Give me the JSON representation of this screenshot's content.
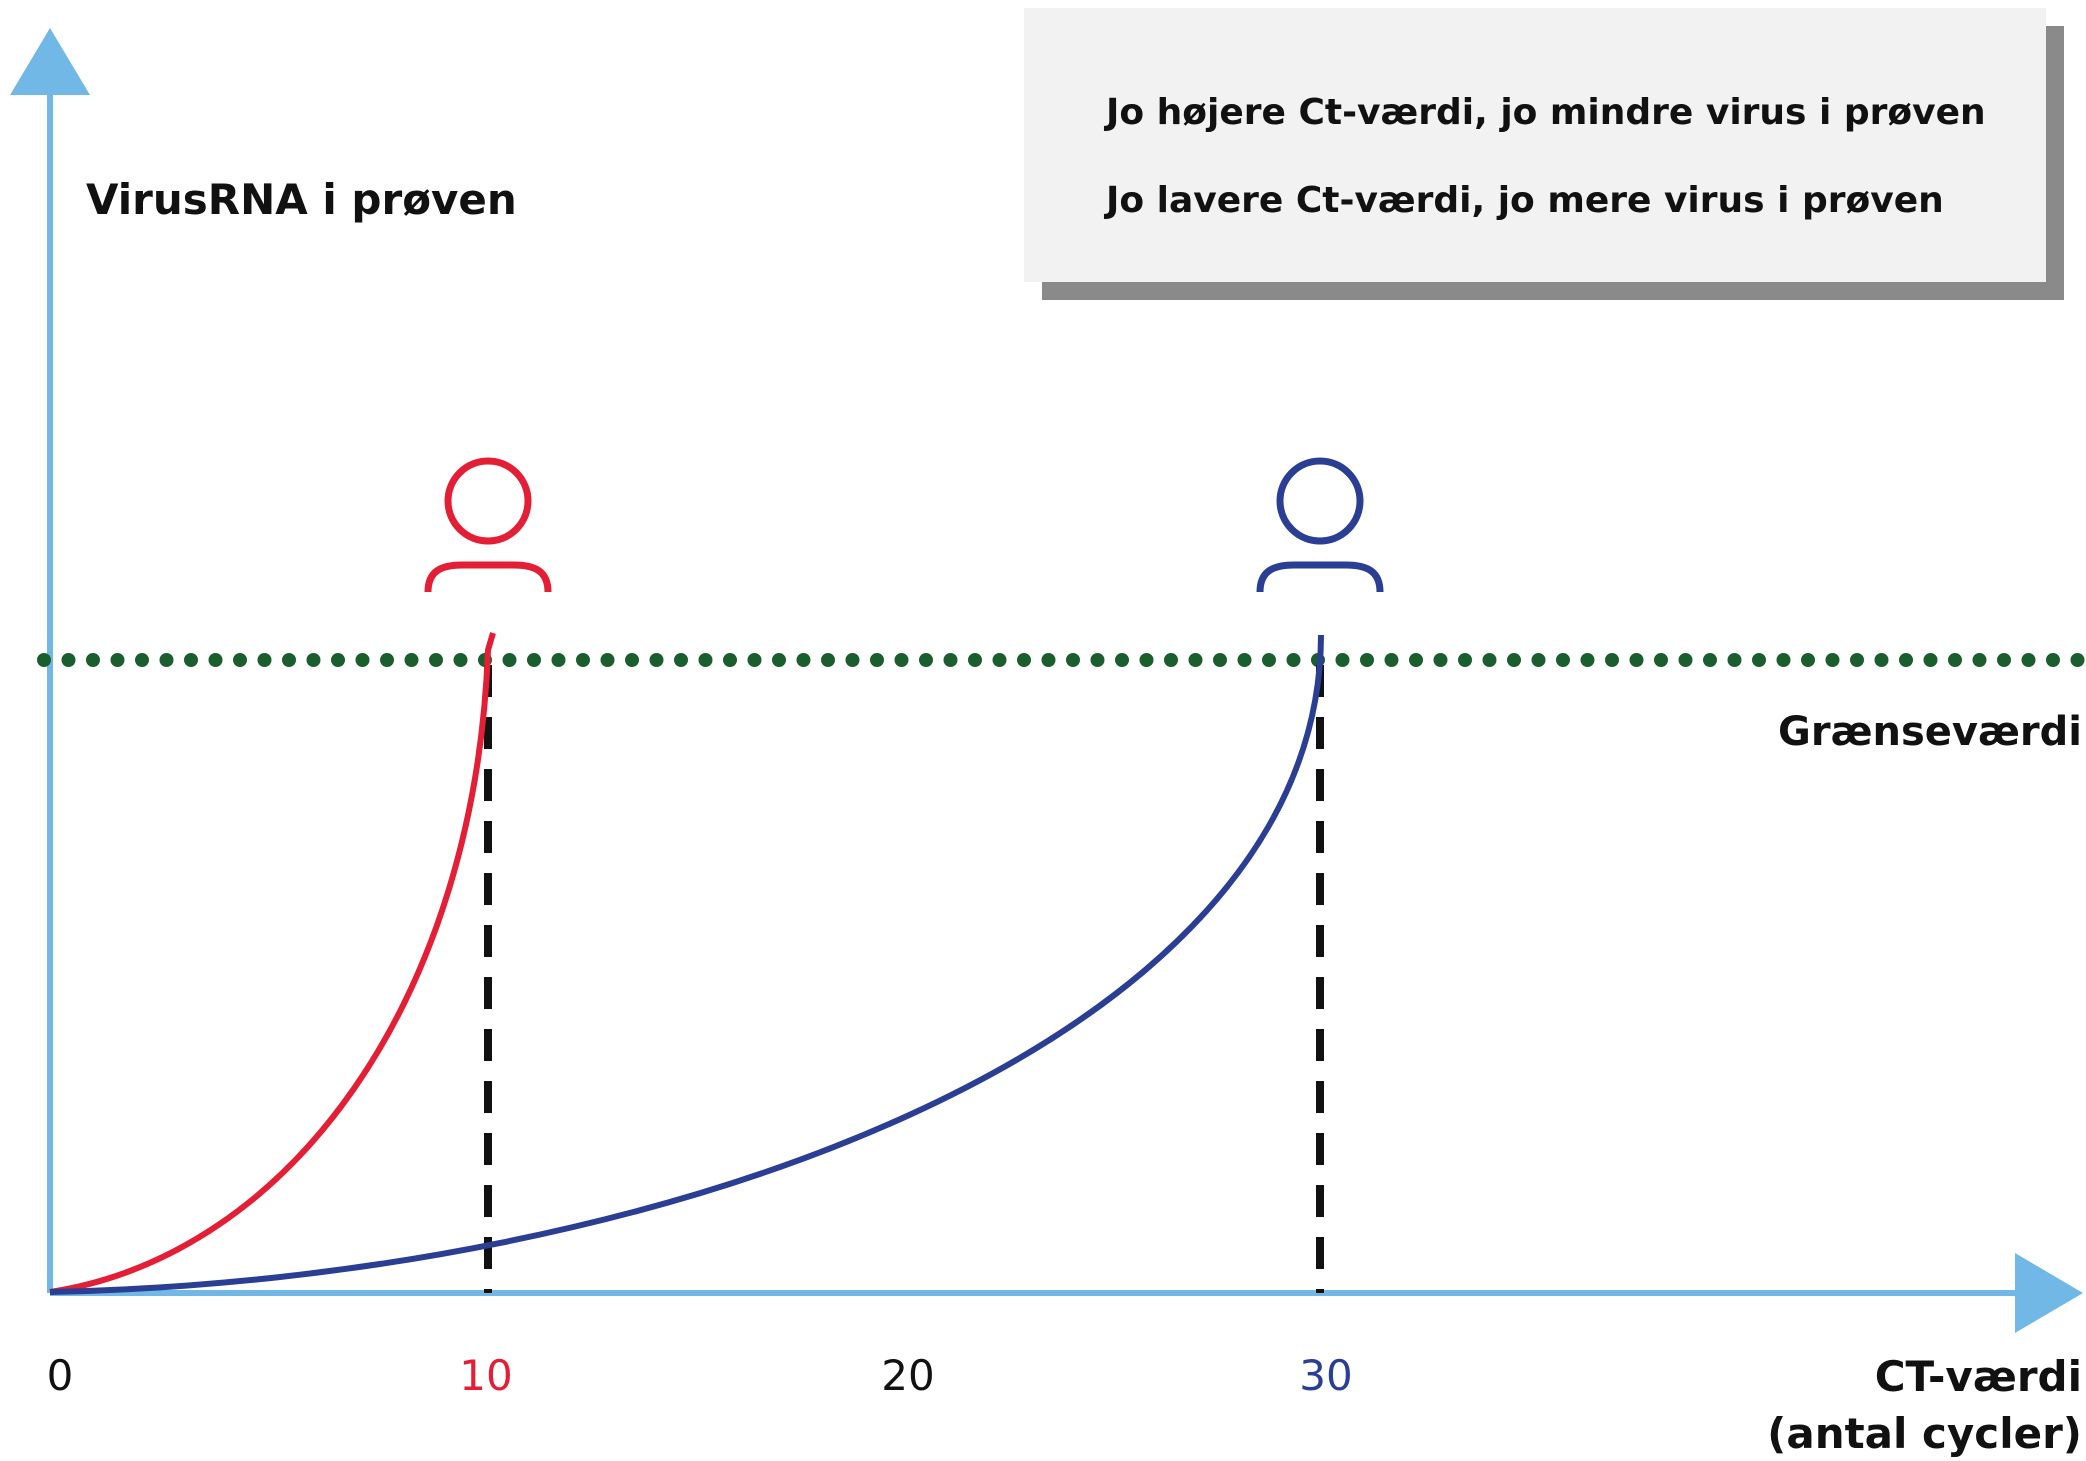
{
  "chart_data": {
    "type": "line",
    "ylabel": "VirusRNA i prøven",
    "xlabel_lines": [
      "CT-værdi",
      "(antal cycler)"
    ],
    "x_ticks": [
      {
        "label": "0",
        "color": "#111111"
      },
      {
        "label": "10",
        "color": "#e31e35"
      },
      {
        "label": "20",
        "color": "#111111"
      },
      {
        "label": "30",
        "color": "#2a3e94"
      }
    ],
    "threshold": {
      "label": "Grænseværdi",
      "color": "#1b5e2d"
    },
    "series": [
      {
        "color": "#e31e35",
        "ct_value": 10
      },
      {
        "color": "#2a3e94",
        "ct_value": 30
      }
    ],
    "info": [
      "Jo højere Ct-værdi, jo mindre virus i prøven",
      "Jo lavere Ct-værdi, jo mere virus i prøven"
    ],
    "colors": {
      "axis": "#72b8e6",
      "red": "#e31e35",
      "blue": "#2a3e94",
      "threshold": "#1b5e2d",
      "dashed": "#111111"
    }
  }
}
